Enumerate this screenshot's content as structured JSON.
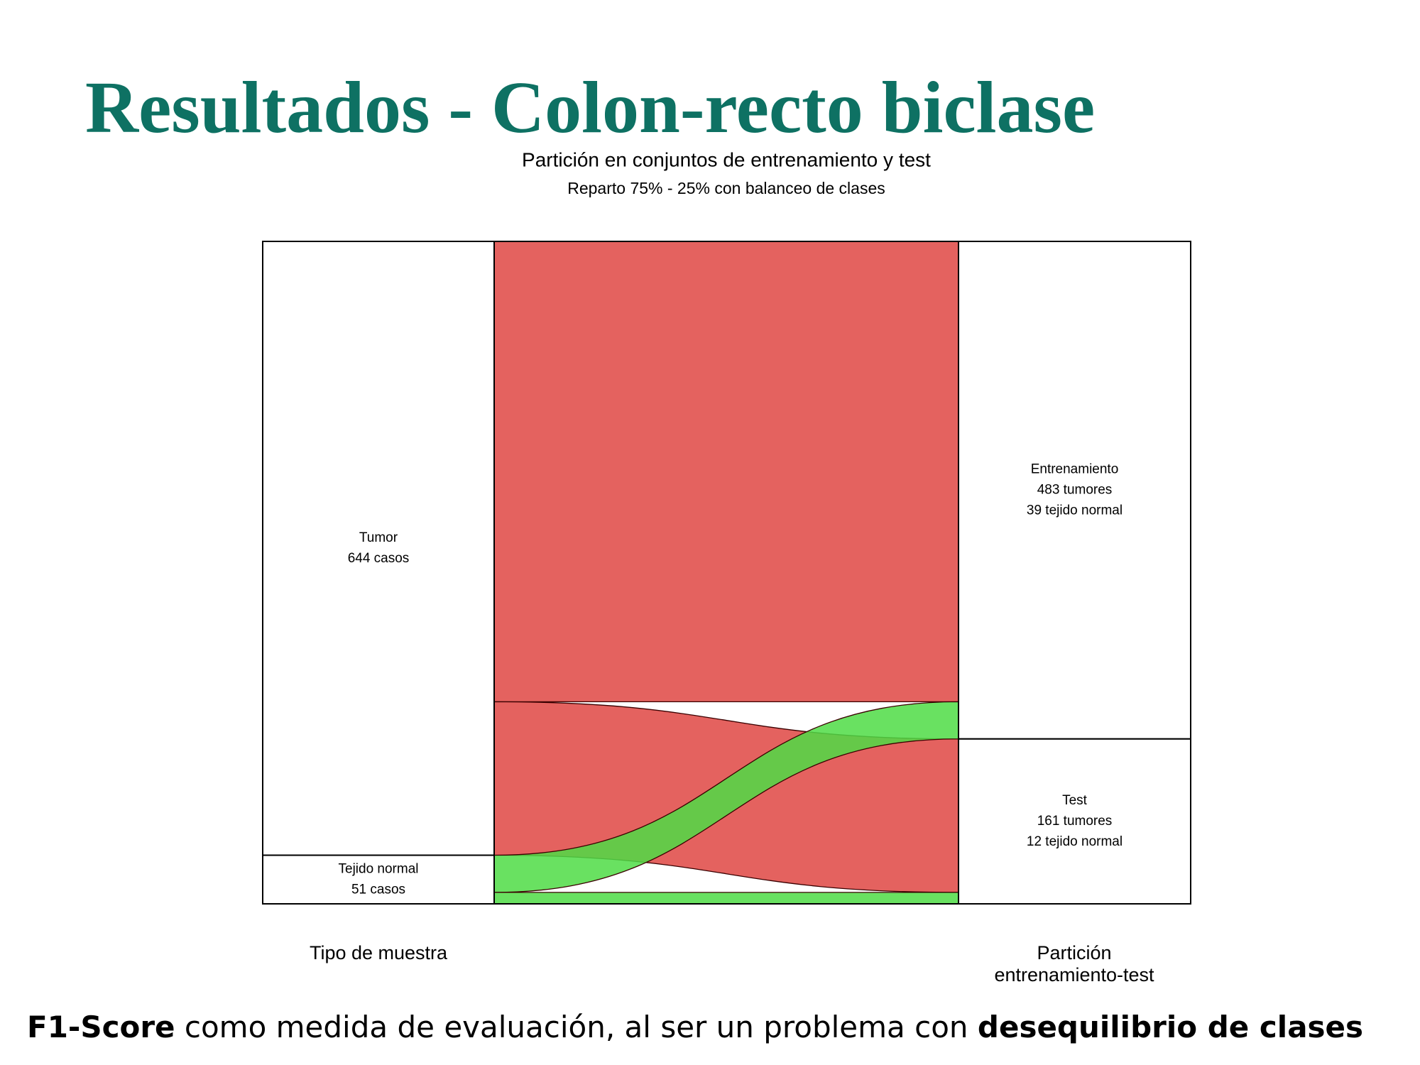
{
  "slide": {
    "title": "Resultados - Colon-recto biclase",
    "footer": [
      "F1-Score",
      " como medida de evaluación, al ser un problema con ",
      "desequilibrio de clases"
    ]
  },
  "chart_data": {
    "type": "alluvial",
    "title": "Partición en conjuntos de entrenamiento y test",
    "subtitle": "Reparto 75% - 25% con balanceo de clases",
    "left_axis_label": "Tipo de muestra",
    "right_axis_label": [
      "Partición",
      "entrenamiento-test"
    ],
    "categories": [
      "Entrenamiento",
      "Test"
    ],
    "category_details": [
      [
        "483 tumores",
        "39 tejido normal"
      ],
      [
        "161 tumores",
        "12 tejido normal"
      ]
    ],
    "series": [
      {
        "name": "Tumor",
        "detail": "644 casos",
        "color": "#e35f5c",
        "values": [
          483,
          161
        ]
      },
      {
        "name": "Tejido normal",
        "detail": "51 casos",
        "color": "#4fdc45",
        "values": [
          39,
          12
        ]
      }
    ]
  }
}
